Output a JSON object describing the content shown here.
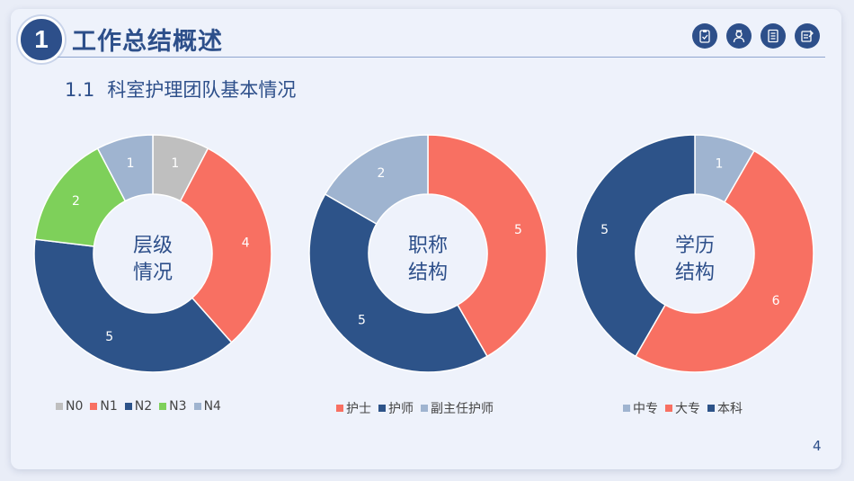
{
  "header": {
    "section_number": "1",
    "section_title": "工作总结概述",
    "subtitle_number": "1.1",
    "subtitle_text": "科室护理团队基本情况"
  },
  "header_icons": [
    "clipboard-icon",
    "nurse-icon",
    "report-icon",
    "checklist-icon"
  ],
  "page_number": "4",
  "colors": {
    "accent": "#2d4f8a",
    "gray": "#bfbfbf",
    "coral": "#f87062",
    "navy": "#2d5389",
    "green": "#7ed05a",
    "light_blue": "#9fb4d0"
  },
  "chart_data": [
    {
      "type": "donut",
      "center_label": [
        "层级",
        "情况"
      ],
      "categories": [
        "N0",
        "N1",
        "N2",
        "N3",
        "N4"
      ],
      "values": [
        1,
        4,
        5,
        2,
        1
      ],
      "colors": [
        "#bfbfbf",
        "#f87062",
        "#2d5389",
        "#7ed05a",
        "#9fb4d0"
      ],
      "legend_position": "bottom"
    },
    {
      "type": "donut",
      "center_label": [
        "职称",
        "结构"
      ],
      "categories": [
        "护士",
        "护师",
        "副主任护师"
      ],
      "values": [
        5,
        5,
        2
      ],
      "colors": [
        "#f87062",
        "#2d5389",
        "#9fb4d0"
      ],
      "legend_position": "bottom"
    },
    {
      "type": "donut",
      "center_label": [
        "学历",
        "结构"
      ],
      "categories": [
        "中专",
        "大专",
        "本科"
      ],
      "values": [
        1,
        6,
        5
      ],
      "colors": [
        "#9fb4d0",
        "#f87062",
        "#2d5389"
      ],
      "legend_position": "bottom"
    }
  ]
}
